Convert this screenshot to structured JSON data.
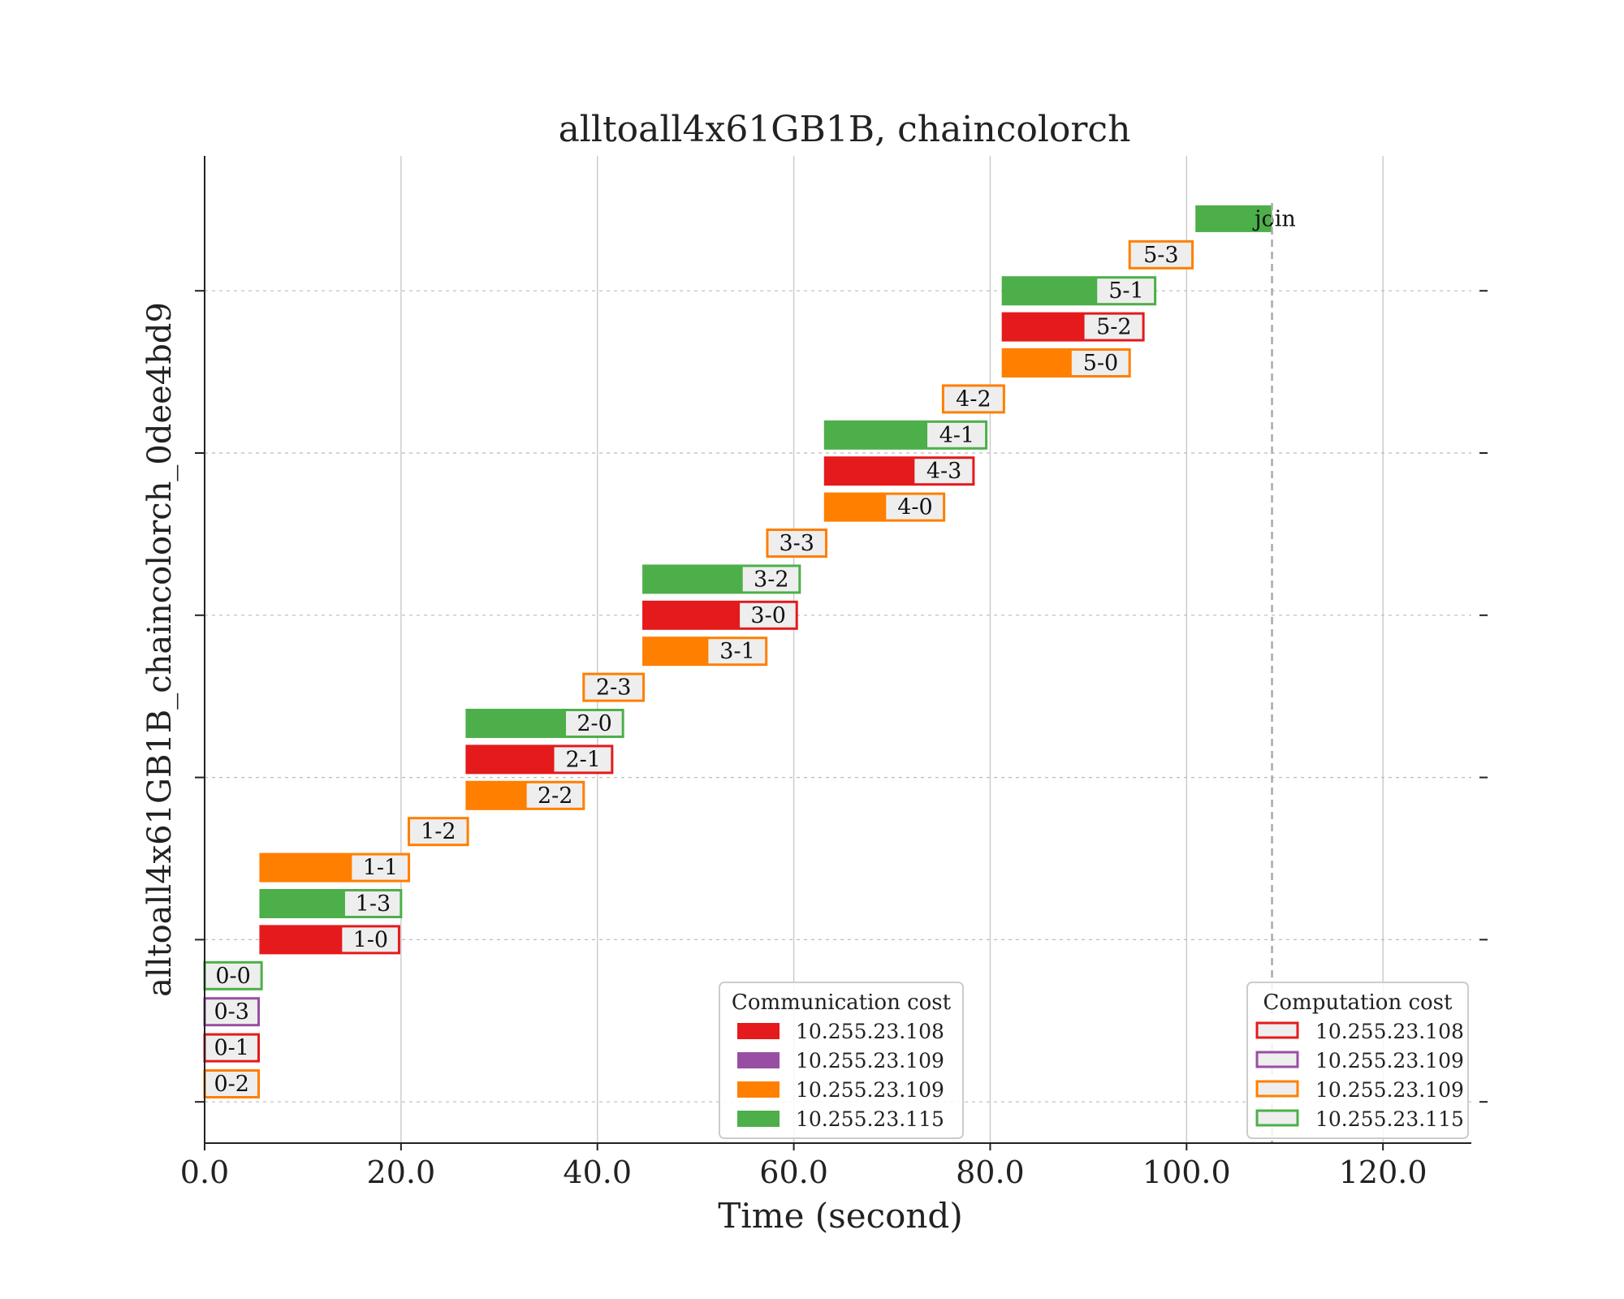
{
  "chart_data": {
    "type": "gantt",
    "title": "alltoall4x61GB1B, chaincolorch",
    "xlabel": "Time (second)",
    "ylabel": "alltoall4x61GB1B_chaincolorch_0dee4bd9",
    "xlim": [
      0,
      129
    ],
    "xticks": [
      0,
      20,
      40,
      60,
      80,
      100,
      120
    ],
    "xtick_labels": [
      "0.0",
      "20.0",
      "40.0",
      "60.0",
      "80.0",
      "100.0",
      "120.0"
    ],
    "x_grid": true,
    "y_grid": "dashed",
    "colors": {
      "10.255.23.108": "#e41a1c",
      "10.255.23.109_a": "#984ea3",
      "10.255.23.109_b": "#ff7f00",
      "10.255.23.115": "#4daf4a",
      "label_box": "#eeeeee",
      "grid": "#cccccc"
    },
    "tasks": [
      {
        "label": "0-2",
        "row": 0,
        "start": 0,
        "end": 5.5,
        "kind": "computation",
        "host": "10.255.23.109_b",
        "comm_end": 0
      },
      {
        "label": "0-1",
        "row": 1,
        "start": 0,
        "end": 5.5,
        "kind": "computation",
        "host": "10.255.23.108",
        "comm_end": 0
      },
      {
        "label": "0-3",
        "row": 2,
        "start": 0,
        "end": 5.5,
        "kind": "computation",
        "host": "10.255.23.109_a",
        "comm_end": 0
      },
      {
        "label": "0-0",
        "row": 3,
        "start": 0,
        "end": 5.8,
        "kind": "computation",
        "host": "10.255.23.115",
        "comm_end": 0
      },
      {
        "label": "1-0",
        "row": 4,
        "start": 5.7,
        "end": 19.8,
        "kind": "communication",
        "host": "10.255.23.108",
        "comm_end": 14.0
      },
      {
        "label": "1-3",
        "row": 5,
        "start": 5.7,
        "end": 20.0,
        "kind": "communication",
        "host": "10.255.23.115",
        "comm_end": 14.3
      },
      {
        "label": "1-1",
        "row": 6,
        "start": 5.7,
        "end": 20.8,
        "kind": "communication",
        "host": "10.255.23.109_b",
        "comm_end": 15.0
      },
      {
        "label": "1-2",
        "row": 7,
        "start": 20.8,
        "end": 26.8,
        "kind": "computation",
        "host": "10.255.23.109_b",
        "comm_end": 20.8
      },
      {
        "label": "2-2",
        "row": 8,
        "start": 26.7,
        "end": 38.6,
        "kind": "communication",
        "host": "10.255.23.109_b",
        "comm_end": 32.8
      },
      {
        "label": "2-1",
        "row": 9,
        "start": 26.7,
        "end": 41.5,
        "kind": "communication",
        "host": "10.255.23.108",
        "comm_end": 35.6
      },
      {
        "label": "2-0",
        "row": 10,
        "start": 26.7,
        "end": 42.6,
        "kind": "communication",
        "host": "10.255.23.115",
        "comm_end": 36.8
      },
      {
        "label": "2-3",
        "row": 11,
        "start": 38.6,
        "end": 44.7,
        "kind": "computation",
        "host": "10.255.23.109_b",
        "comm_end": 38.6
      },
      {
        "label": "3-1",
        "row": 12,
        "start": 44.7,
        "end": 57.2,
        "kind": "communication",
        "host": "10.255.23.109_b",
        "comm_end": 51.3
      },
      {
        "label": "3-0",
        "row": 13,
        "start": 44.7,
        "end": 60.3,
        "kind": "communication",
        "host": "10.255.23.108",
        "comm_end": 54.5
      },
      {
        "label": "3-2",
        "row": 14,
        "start": 44.7,
        "end": 60.6,
        "kind": "communication",
        "host": "10.255.23.115",
        "comm_end": 54.8
      },
      {
        "label": "3-3",
        "row": 15,
        "start": 57.3,
        "end": 63.3,
        "kind": "computation",
        "host": "10.255.23.109_b",
        "comm_end": 57.3
      },
      {
        "label": "4-0",
        "row": 16,
        "start": 63.2,
        "end": 75.3,
        "kind": "communication",
        "host": "10.255.23.109_b",
        "comm_end": 69.4
      },
      {
        "label": "4-3",
        "row": 17,
        "start": 63.2,
        "end": 78.3,
        "kind": "communication",
        "host": "10.255.23.108",
        "comm_end": 72.3
      },
      {
        "label": "4-1",
        "row": 18,
        "start": 63.2,
        "end": 79.6,
        "kind": "communication",
        "host": "10.255.23.115",
        "comm_end": 73.6
      },
      {
        "label": "4-2",
        "row": 19,
        "start": 75.2,
        "end": 81.4,
        "kind": "computation",
        "host": "10.255.23.109_b",
        "comm_end": 75.2
      },
      {
        "label": "5-0",
        "row": 20,
        "start": 81.3,
        "end": 94.2,
        "kind": "communication",
        "host": "10.255.23.109_b",
        "comm_end": 88.3
      },
      {
        "label": "5-2",
        "row": 21,
        "start": 81.3,
        "end": 95.6,
        "kind": "communication",
        "host": "10.255.23.108",
        "comm_end": 89.6
      },
      {
        "label": "5-1",
        "row": 22,
        "start": 81.3,
        "end": 96.8,
        "kind": "communication",
        "host": "10.255.23.115",
        "comm_end": 90.9
      },
      {
        "label": "5-3",
        "row": 23,
        "start": 94.2,
        "end": 100.6,
        "kind": "computation",
        "host": "10.255.23.109_b",
        "comm_end": 94.2
      },
      {
        "label": "join",
        "row": 24,
        "start": 100.9,
        "end": 108.7,
        "kind": "communication",
        "host": "10.255.23.115",
        "comm_end": 108.7
      }
    ],
    "join_line_x": 108.7,
    "legends": [
      {
        "title": "Communication cost",
        "style": "filled",
        "placement": "lower-center",
        "entries": [
          {
            "label": "10.255.23.108",
            "host": "10.255.23.108"
          },
          {
            "label": "10.255.23.109",
            "host": "10.255.23.109_a"
          },
          {
            "label": "10.255.23.109",
            "host": "10.255.23.109_b"
          },
          {
            "label": "10.255.23.115",
            "host": "10.255.23.115"
          }
        ]
      },
      {
        "title": "Computation cost",
        "style": "outlined",
        "placement": "lower-right",
        "entries": [
          {
            "label": "10.255.23.108",
            "host": "10.255.23.108"
          },
          {
            "label": "10.255.23.109",
            "host": "10.255.23.109_a"
          },
          {
            "label": "10.255.23.109",
            "host": "10.255.23.109_b"
          },
          {
            "label": "10.255.23.115",
            "host": "10.255.23.115"
          }
        ]
      }
    ]
  }
}
